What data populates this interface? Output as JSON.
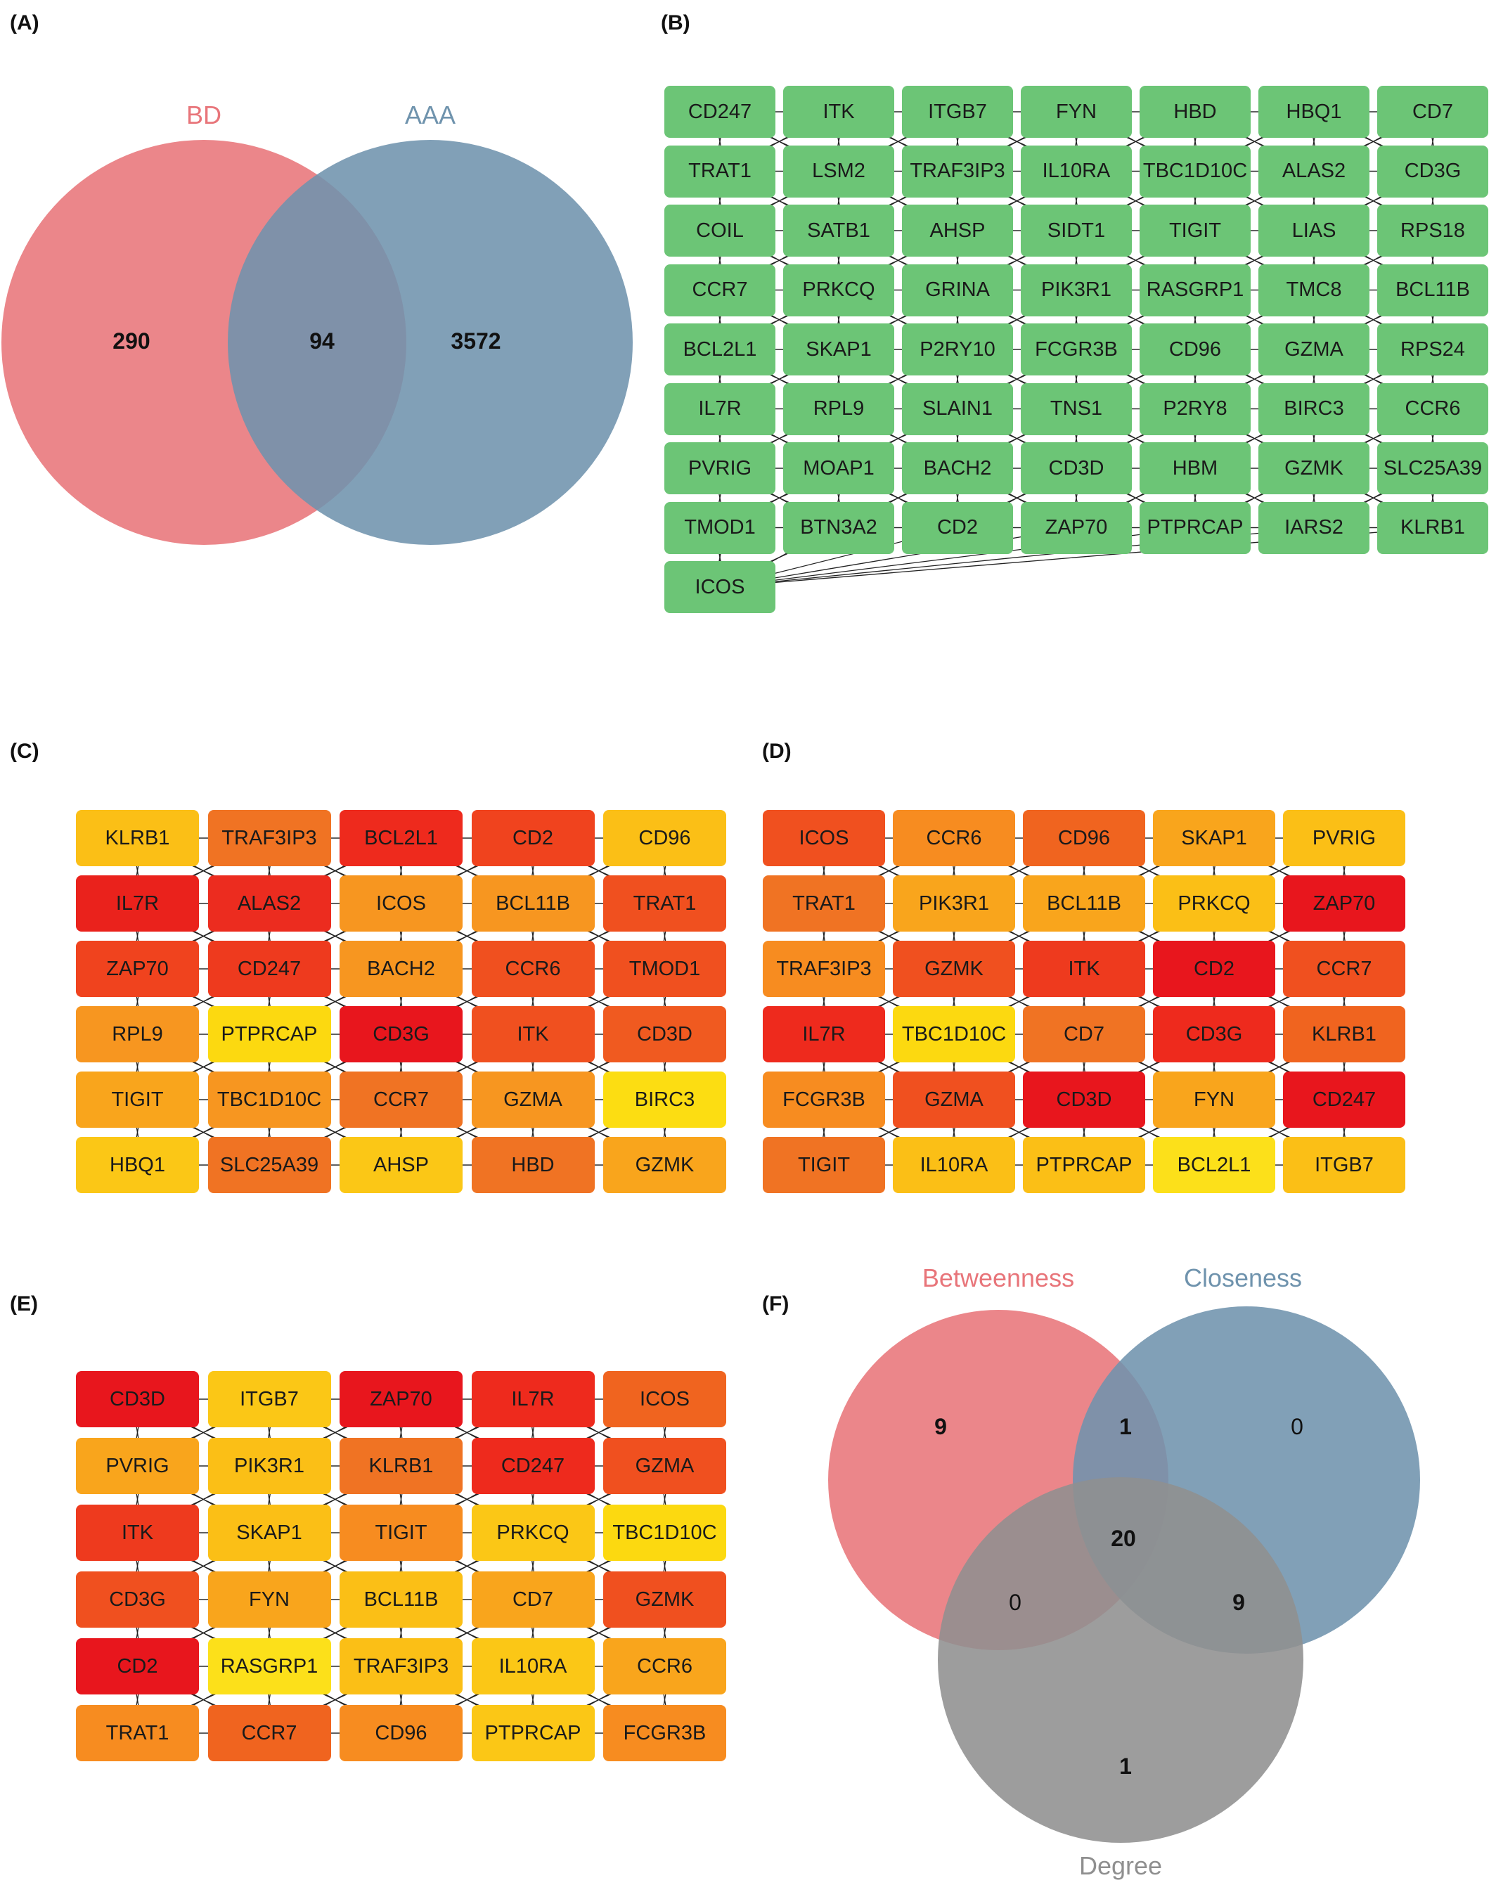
{
  "panels": {
    "A": {
      "label": "(A)",
      "venn": {
        "sets": [
          {
            "name": "BD",
            "color": "#e8757a"
          },
          {
            "name": "AAA",
            "color": "#6f93ad"
          }
        ],
        "counts": {
          "bd_only": "290",
          "intersection": "94",
          "aaa_only": "3572"
        }
      }
    },
    "B": {
      "label": "(B)",
      "node_color": "#6cc576",
      "rows": [
        [
          "CD247",
          "ITK",
          "ITGB7",
          "FYN",
          "HBD",
          "HBQ1",
          "CD7"
        ],
        [
          "TRAT1",
          "LSM2",
          "TRAF3IP3",
          "IL10RA",
          "TBC1D10C",
          "ALAS2",
          "CD3G"
        ],
        [
          "COIL",
          "SATB1",
          "AHSP",
          "SIDT1",
          "TIGIT",
          "LIAS",
          "RPS18"
        ],
        [
          "CCR7",
          "PRKCQ",
          "GRINA",
          "PIK3R1",
          "RASGRP1",
          "TMC8",
          "BCL11B"
        ],
        [
          "BCL2L1",
          "SKAP1",
          "P2RY10",
          "FCGR3B",
          "CD96",
          "GZMA",
          "RPS24"
        ],
        [
          "IL7R",
          "RPL9",
          "SLAIN1",
          "TNS1",
          "P2RY8",
          "BIRC3",
          "CCR6"
        ],
        [
          "PVRIG",
          "MOAP1",
          "BACH2",
          "CD3D",
          "HBM",
          "GZMK",
          "SLC25A39"
        ],
        [
          "TMOD1",
          "BTN3A2",
          "CD2",
          "ZAP70",
          "PTPRCAP",
          "IARS2",
          "KLRB1"
        ],
        [
          "ICOS"
        ]
      ]
    },
    "C": {
      "label": "(C)",
      "rows": [
        [
          {
            "name": "KLRB1",
            "color": "#fbbf16"
          },
          {
            "name": "TRAF3IP3",
            "color": "#f07323"
          },
          {
            "name": "BCL2L1",
            "color": "#ee2a1d"
          },
          {
            "name": "CD2",
            "color": "#f0431e"
          },
          {
            "name": "CD96",
            "color": "#fbbf16"
          }
        ],
        [
          {
            "name": "IL7R",
            "color": "#ea221c"
          },
          {
            "name": "ALAS2",
            "color": "#ec2c1f"
          },
          {
            "name": "ICOS",
            "color": "#f79620"
          },
          {
            "name": "BCL11B",
            "color": "#f79620"
          },
          {
            "name": "TRAT1",
            "color": "#f0501f"
          }
        ],
        [
          {
            "name": "ZAP70",
            "color": "#f0431e"
          },
          {
            "name": "CD247",
            "color": "#ee3a1e"
          },
          {
            "name": "BACH2",
            "color": "#f79620"
          },
          {
            "name": "CCR6",
            "color": "#f0501f"
          },
          {
            "name": "TMOD1",
            "color": "#f0501f"
          }
        ],
        [
          {
            "name": "RPL9",
            "color": "#f79620"
          },
          {
            "name": "PTPRCAP",
            "color": "#fcd910"
          },
          {
            "name": "CD3G",
            "color": "#e8161d"
          },
          {
            "name": "ITK",
            "color": "#f0501f"
          },
          {
            "name": "CD3D",
            "color": "#f05a20"
          }
        ],
        [
          {
            "name": "TIGIT",
            "color": "#f9a51c"
          },
          {
            "name": "TBC1D10C",
            "color": "#f79620"
          },
          {
            "name": "CCR7",
            "color": "#f07323"
          },
          {
            "name": "GZMA",
            "color": "#f79620"
          },
          {
            "name": "BIRC3",
            "color": "#fcdd12"
          }
        ],
        [
          {
            "name": "HBQ1",
            "color": "#fbc716"
          },
          {
            "name": "SLC25A39",
            "color": "#f07323"
          },
          {
            "name": "AHSP",
            "color": "#fbc716"
          },
          {
            "name": "HBD",
            "color": "#f07323"
          },
          {
            "name": "GZMK",
            "color": "#f9a51c"
          }
        ]
      ]
    },
    "D": {
      "label": "(D)",
      "rows": [
        [
          {
            "name": "ICOS",
            "color": "#f0501f"
          },
          {
            "name": "CCR6",
            "color": "#f78c20"
          },
          {
            "name": "CD96",
            "color": "#f0641f"
          },
          {
            "name": "SKAP1",
            "color": "#f9a51c"
          },
          {
            "name": "PVRIG",
            "color": "#fbbf16"
          }
        ],
        [
          {
            "name": "TRAT1",
            "color": "#f07323"
          },
          {
            "name": "PIK3R1",
            "color": "#f9a51c"
          },
          {
            "name": "BCL11B",
            "color": "#f9a51c"
          },
          {
            "name": "PRKCQ",
            "color": "#fbbf16"
          },
          {
            "name": "ZAP70",
            "color": "#e8161d"
          }
        ],
        [
          {
            "name": "TRAF3IP3",
            "color": "#f78c20"
          },
          {
            "name": "GZMK",
            "color": "#f0501f"
          },
          {
            "name": "ITK",
            "color": "#ee3a1e"
          },
          {
            "name": "CD2",
            "color": "#e8161d"
          },
          {
            "name": "CCR7",
            "color": "#f0501f"
          }
        ],
        [
          {
            "name": "IL7R",
            "color": "#ee2a1d"
          },
          {
            "name": "TBC1D10C",
            "color": "#fcd910"
          },
          {
            "name": "CD7",
            "color": "#f07323"
          },
          {
            "name": "CD3G",
            "color": "#ee2a1d"
          },
          {
            "name": "KLRB1",
            "color": "#f0641f"
          }
        ],
        [
          {
            "name": "FCGR3B",
            "color": "#f78c20"
          },
          {
            "name": "GZMA",
            "color": "#f0501f"
          },
          {
            "name": "CD3D",
            "color": "#e8161d"
          },
          {
            "name": "FYN",
            "color": "#f9a51c"
          },
          {
            "name": "CD247",
            "color": "#e8161d"
          }
        ],
        [
          {
            "name": "TIGIT",
            "color": "#f07323"
          },
          {
            "name": "IL10RA",
            "color": "#fbbf16"
          },
          {
            "name": "PTPRCAP",
            "color": "#fbbf16"
          },
          {
            "name": "BCL2L1",
            "color": "#fce01a"
          },
          {
            "name": "ITGB7",
            "color": "#fbbf16"
          }
        ]
      ]
    },
    "E": {
      "label": "(E)",
      "rows": [
        [
          {
            "name": "CD3D",
            "color": "#e8161d"
          },
          {
            "name": "ITGB7",
            "color": "#fbc716"
          },
          {
            "name": "ZAP70",
            "color": "#e8161d"
          },
          {
            "name": "IL7R",
            "color": "#ee2a1d"
          },
          {
            "name": "ICOS",
            "color": "#f0641f"
          }
        ],
        [
          {
            "name": "PVRIG",
            "color": "#f9a51c"
          },
          {
            "name": "PIK3R1",
            "color": "#fbbf16"
          },
          {
            "name": "KLRB1",
            "color": "#f07323"
          },
          {
            "name": "CD247",
            "color": "#ee2a1d"
          },
          {
            "name": "GZMA",
            "color": "#f0501f"
          }
        ],
        [
          {
            "name": "ITK",
            "color": "#ee3a1e"
          },
          {
            "name": "SKAP1",
            "color": "#fbbf16"
          },
          {
            "name": "TIGIT",
            "color": "#f78c20"
          },
          {
            "name": "PRKCQ",
            "color": "#fbc716"
          },
          {
            "name": "TBC1D10C",
            "color": "#fcd910"
          }
        ],
        [
          {
            "name": "CD3G",
            "color": "#f0501f"
          },
          {
            "name": "FYN",
            "color": "#f9a51c"
          },
          {
            "name": "BCL11B",
            "color": "#fbbf16"
          },
          {
            "name": "CD7",
            "color": "#f9a51c"
          },
          {
            "name": "GZMK",
            "color": "#f0501f"
          }
        ],
        [
          {
            "name": "CD2",
            "color": "#e8161d"
          },
          {
            "name": "RASGRP1",
            "color": "#fce01a"
          },
          {
            "name": "TRAF3IP3",
            "color": "#fbbf16"
          },
          {
            "name": "IL10RA",
            "color": "#fbc716"
          },
          {
            "name": "CCR6",
            "color": "#f9a51c"
          }
        ],
        [
          {
            "name": "TRAT1",
            "color": "#f78c20"
          },
          {
            "name": "CCR7",
            "color": "#f0641f"
          },
          {
            "name": "CD96",
            "color": "#f78c20"
          },
          {
            "name": "PTPRCAP",
            "color": "#fbc716"
          },
          {
            "name": "FCGR3B",
            "color": "#f78c20"
          }
        ]
      ]
    },
    "F": {
      "label": "(F)",
      "venn": {
        "sets": [
          {
            "name": "Betweenness",
            "color": "#e8757a"
          },
          {
            "name": "Closeness",
            "color": "#6f93ad"
          },
          {
            "name": "Degree",
            "color": "#8f8f8f"
          }
        ],
        "counts": {
          "b_only": "9",
          "bc": "1",
          "c_only": "0",
          "bcd": "20",
          "bd": "0",
          "cd": "9",
          "d_only": "1"
        }
      }
    }
  }
}
